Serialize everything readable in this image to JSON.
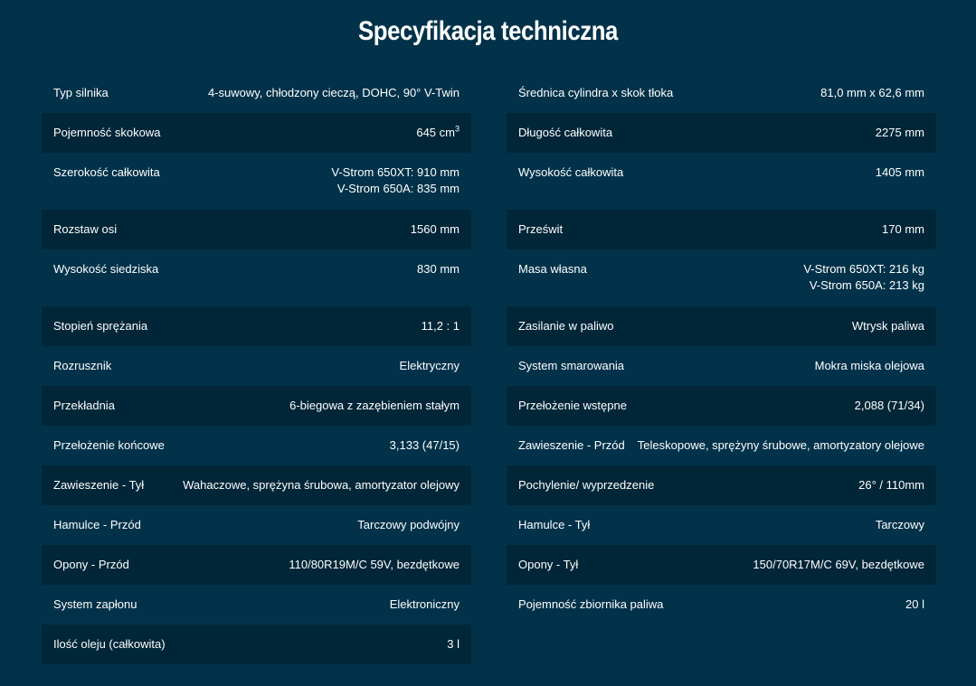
{
  "title": "Specyfikacja techniczna",
  "left": [
    {
      "label": "Typ silnika",
      "value": "4-suwowy, chłodzony cieczą, DOHC, 90° V-Twin",
      "dark": false,
      "tall": false
    },
    {
      "label": "Pojemność skokowa",
      "value": "645 cm",
      "sup": "3",
      "dark": true,
      "tall": false
    },
    {
      "label": "Szerokość całkowita",
      "value": "V-Strom 650XT: 910 mm\nV-Strom 650A: 835 mm",
      "dark": false,
      "tall": true
    },
    {
      "label": "Rozstaw osi",
      "value": "1560 mm",
      "dark": true,
      "tall": false
    },
    {
      "label": "Wysokość siedziska",
      "value": "830 mm",
      "dark": false,
      "tall": true
    },
    {
      "label": "Stopień sprężania",
      "value": "11,2 : 1",
      "dark": true,
      "tall": false
    },
    {
      "label": "Rozrusznik",
      "value": "Elektryczny",
      "dark": false,
      "tall": false
    },
    {
      "label": "Przekładnia",
      "value": "6-biegowa z zazębieniem stałym",
      "dark": true,
      "tall": false
    },
    {
      "label": "Przełożenie końcowe",
      "value": "3,133 (47/15)",
      "dark": false,
      "tall": false
    },
    {
      "label": "Zawieszenie - Tył",
      "value": "Wahaczowe, sprężyna śrubowa, amortyzator olejowy",
      "dark": true,
      "tall": false
    },
    {
      "label": "Hamulce - Przód",
      "value": "Tarczowy podwójny",
      "dark": false,
      "tall": false
    },
    {
      "label": "Opony - Przód",
      "value": "110/80R19M/C 59V, bezdętkowe",
      "dark": true,
      "tall": false
    },
    {
      "label": "System zapłonu",
      "value": "Elektroniczny",
      "dark": false,
      "tall": false
    },
    {
      "label": "Ilość oleju (całkowita)",
      "value": "3 l",
      "dark": true,
      "tall": false
    }
  ],
  "right": [
    {
      "label": "Średnica cylindra x skok tłoka",
      "value": "81,0 mm x 62,6 mm",
      "dark": false,
      "tall": false
    },
    {
      "label": "Długość całkowita",
      "value": "2275 mm",
      "dark": true,
      "tall": false
    },
    {
      "label": "Wysokość całkowita",
      "value": "1405 mm",
      "dark": false,
      "tall": true
    },
    {
      "label": "Prześwit",
      "value": "170 mm",
      "dark": true,
      "tall": false
    },
    {
      "label": "Masa własna",
      "value": "V-Strom 650XT: 216 kg\nV-Strom 650A: 213 kg",
      "dark": false,
      "tall": true
    },
    {
      "label": "Zasilanie w paliwo",
      "value": "Wtrysk paliwa",
      "dark": true,
      "tall": false
    },
    {
      "label": "System smarowania",
      "value": "Mokra miska olejowa",
      "dark": false,
      "tall": false
    },
    {
      "label": "Przełożenie wstępne",
      "value": "2,088 (71/34)",
      "dark": true,
      "tall": false
    },
    {
      "label": "Zawieszenie - Przód",
      "value": "Teleskopowe, sprężyny śrubowe, amortyzatory olejowe",
      "dark": false,
      "tall": false
    },
    {
      "label": "Pochylenie/ wyprzedzenie",
      "value": "26° / 110mm",
      "dark": true,
      "tall": false
    },
    {
      "label": "Hamulce - Tył",
      "value": "Tarczowy",
      "dark": false,
      "tall": false
    },
    {
      "label": "Opony - Tył",
      "value": "150/70R17M/C 69V, bezdętkowe",
      "dark": true,
      "tall": false
    },
    {
      "label": "Pojemność zbiornika paliwa",
      "value": "20 l",
      "dark": false,
      "tall": false
    }
  ]
}
